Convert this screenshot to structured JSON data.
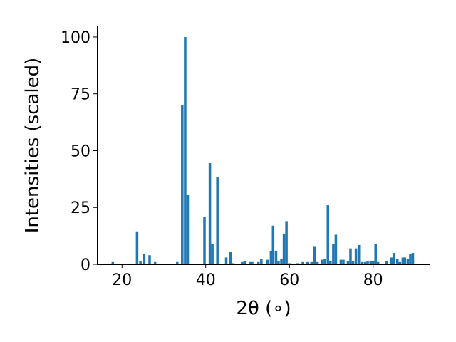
{
  "chart_data": {
    "type": "bar",
    "title": "",
    "xlabel": "2θ (∘)",
    "ylabel": "Intensities (scaled)",
    "xlim": [
      14.0,
      93.5
    ],
    "ylim": [
      0,
      105
    ],
    "xticks": [
      20,
      40,
      60,
      80
    ],
    "yticks": [
      0,
      25,
      50,
      75,
      100
    ],
    "bar_width": 0.6,
    "color": "#1f77b4",
    "grid": false,
    "x": [
      17.8,
      23.6,
      24.4,
      25.3,
      26.6,
      27.9,
      33.2,
      34.4,
      35.1,
      35.7,
      39.7,
      41.0,
      41.6,
      42.8,
      44.9,
      45.9,
      46.4,
      48.7,
      49.3,
      50.6,
      51.1,
      52.6,
      53.3,
      54.8,
      55.6,
      56.1,
      56.8,
      57.4,
      58.1,
      58.7,
      59.3,
      60.0,
      62.0,
      63.2,
      64.3,
      65.3,
      66.0,
      66.7,
      67.9,
      68.5,
      69.2,
      69.8,
      70.5,
      71.1,
      72.3,
      72.9,
      74.0,
      74.6,
      75.2,
      75.9,
      76.6,
      77.4,
      78.1,
      78.7,
      79.4,
      80.0,
      80.6,
      81.2,
      83.2,
      84.4,
      85.0,
      85.8,
      86.4,
      87.1,
      87.6,
      88.3,
      88.9,
      89.5
    ],
    "values": [
      1,
      14.5,
      1.5,
      4.5,
      4,
      1,
      1,
      70,
      100,
      30.5,
      21,
      44.5,
      9,
      38.5,
      3,
      5.5,
      0.5,
      1,
      1.5,
      1,
      1,
      1,
      2.5,
      2,
      6,
      17,
      6,
      1.5,
      2.5,
      13.5,
      19,
      0.5,
      0.5,
      1,
      1,
      1,
      8,
      1,
      2,
      2.5,
      26,
      1.5,
      9,
      13,
      2,
      2,
      1.5,
      7,
      1.5,
      7,
      8.5,
      1,
      1,
      1.5,
      1.5,
      1.5,
      9,
      1,
      1.5,
      3,
      5,
      2.5,
      1,
      3,
      3,
      2.5,
      4.5,
      5
    ]
  }
}
